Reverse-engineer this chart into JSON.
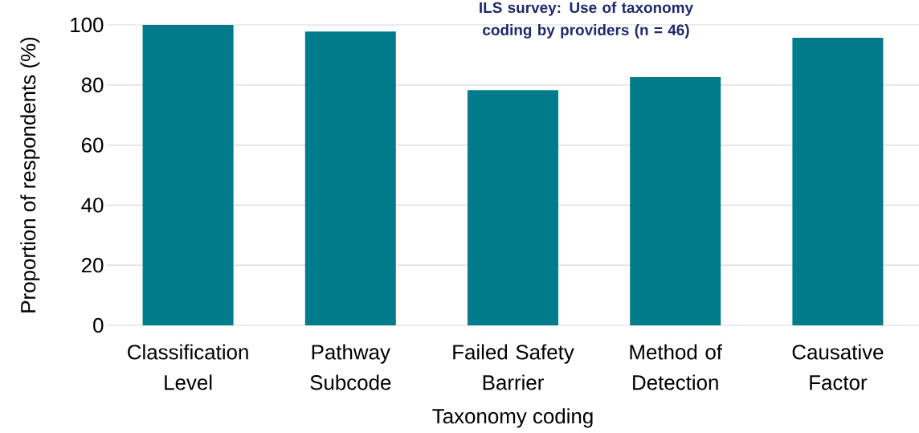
{
  "chart_data": {
    "type": "bar",
    "title": "ILS survey: Use of taxonomy coding by providers (n = 46)",
    "xlabel": "Taxonomy coding",
    "ylabel": "Proportion of respondents (%)",
    "categories": [
      "Classification Level",
      "Pathway Subcode",
      "Failed Safety Barrier",
      "Method of Detection",
      "Causative Factor"
    ],
    "values": [
      100,
      97.8,
      78.3,
      82.6,
      95.7
    ],
    "color": "#007b8a",
    "ylim": [
      0,
      100
    ],
    "yticks": [
      0,
      20,
      40,
      60,
      80,
      100
    ],
    "grid": "y"
  }
}
